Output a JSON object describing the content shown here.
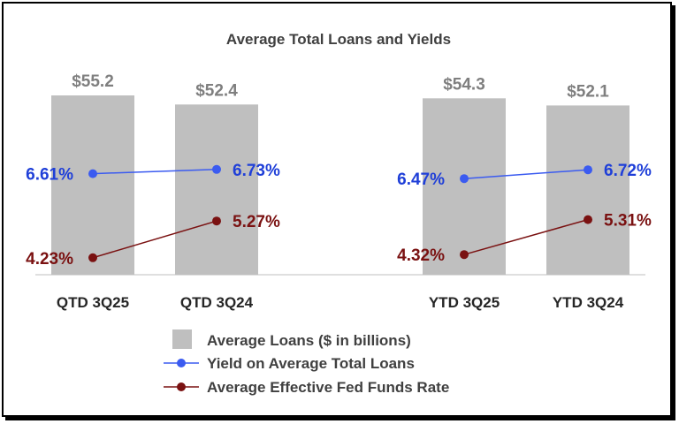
{
  "chart_data": {
    "type": "bar",
    "title": "Average Total Loans and Yields",
    "categories": [
      "QTD 3Q25",
      "QTD 3Q24",
      "YTD 3Q25",
      "YTD 3Q24"
    ],
    "groups": [
      [
        "QTD 3Q25",
        "QTD 3Q24"
      ],
      [
        "YTD 3Q25",
        "YTD 3Q24"
      ]
    ],
    "bars": {
      "name": "Average Loans ($ in billions)",
      "values": [
        55.2,
        52.4,
        54.3,
        52.1
      ],
      "labels": [
        "$55.2",
        "$52.4",
        "$54.3",
        "$52.1"
      ],
      "color": "#bfbfbf"
    },
    "lines": [
      {
        "name": "Yield on Average Total Loans",
        "values": [
          6.61,
          6.73,
          6.47,
          6.72
        ],
        "labels": [
          "6.61%",
          "6.73%",
          "6.47%",
          "6.72%"
        ],
        "color": "#1f3fd8",
        "line_color": "#3b5bf0"
      },
      {
        "name": "Average Effective Fed Funds Rate",
        "values": [
          4.23,
          5.27,
          4.32,
          5.31
        ],
        "labels": [
          "4.23%",
          "5.27%",
          "4.32%",
          "5.31%"
        ],
        "color": "#7a1111",
        "line_color": "#7a1111"
      }
    ],
    "legend_position": "bottom",
    "grid": false
  }
}
